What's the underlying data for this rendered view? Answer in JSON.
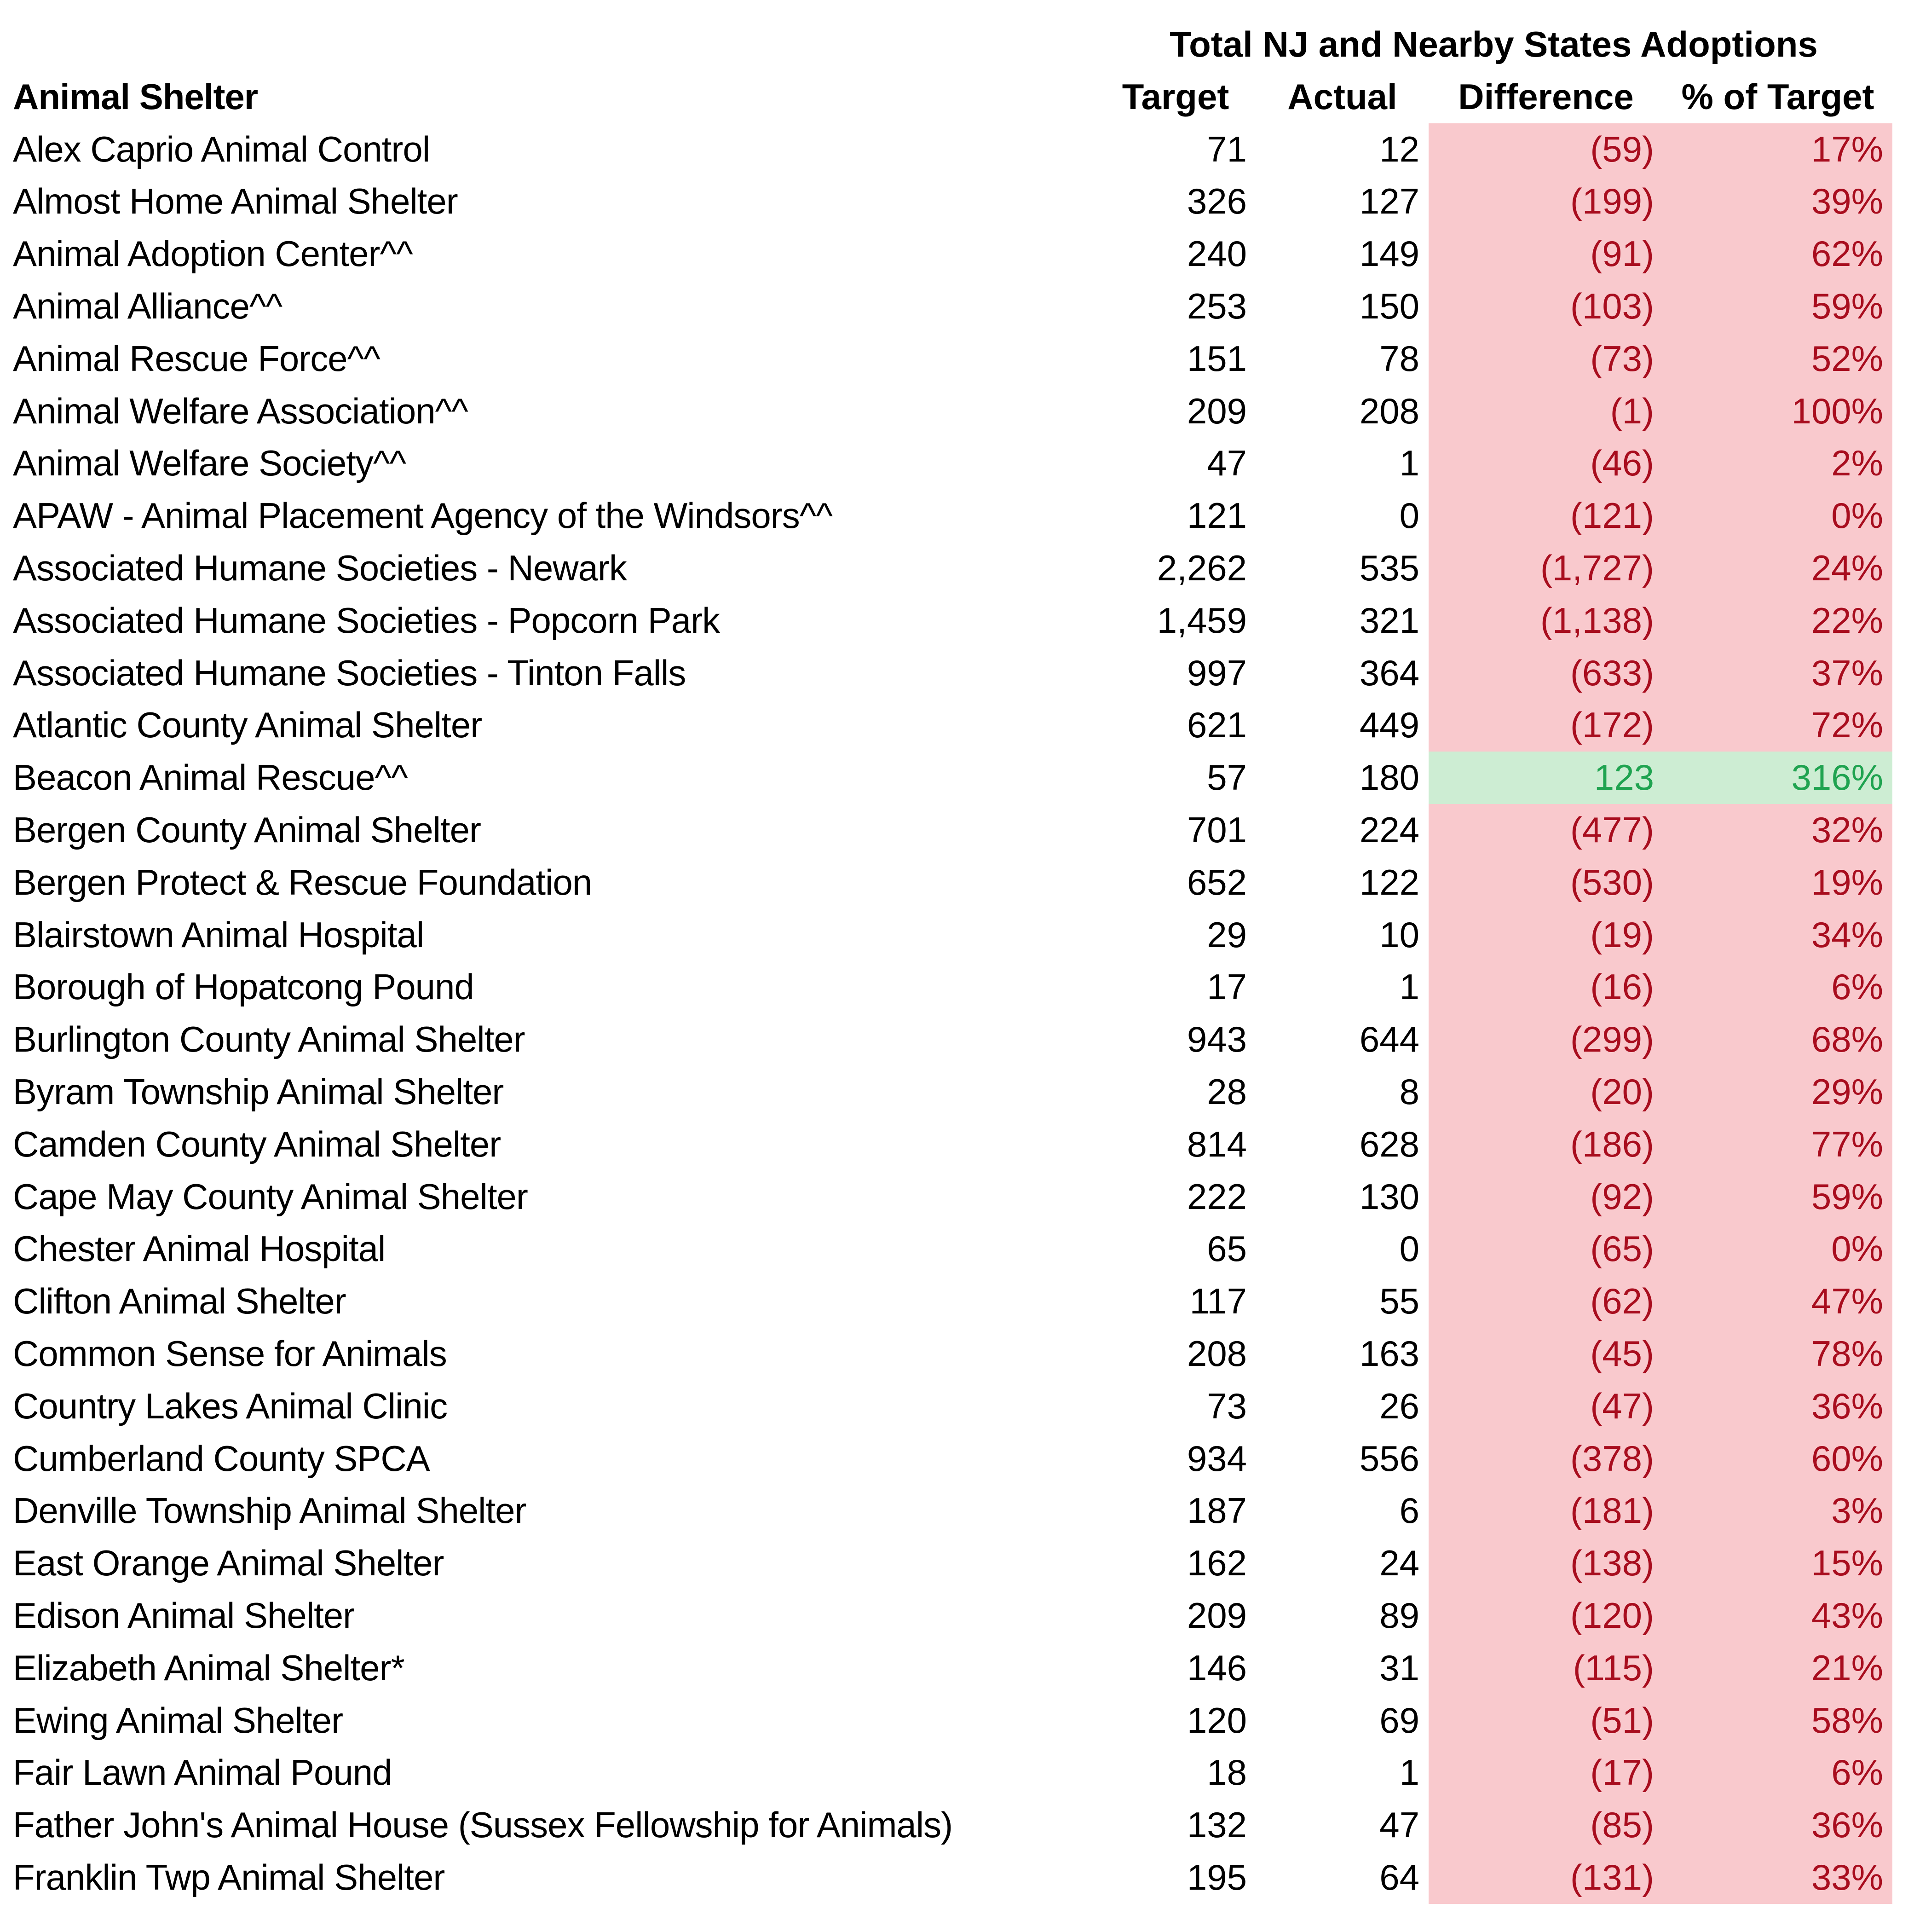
{
  "header": {
    "group_title": "Total NJ and Nearby States Adoptions",
    "name_col": "Animal Shelter",
    "columns": [
      "Target",
      "Actual",
      "Difference",
      "% of Target"
    ]
  },
  "colors": {
    "under_fill": "#F9C9CD",
    "under_text": "#A80D1E",
    "over_fill": "#CDEDD3",
    "over_text": "#1FA350",
    "text": "#000000",
    "background": "#FFFFFF"
  },
  "rows": [
    {
      "name": "Alex Caprio Animal Control",
      "target": "71",
      "actual": "12",
      "difference": "(59)",
      "pct_of_target": "17%",
      "status": "under"
    },
    {
      "name": "Almost Home Animal Shelter",
      "target": "326",
      "actual": "127",
      "difference": "(199)",
      "pct_of_target": "39%",
      "status": "under"
    },
    {
      "name": "Animal Adoption Center^^",
      "target": "240",
      "actual": "149",
      "difference": "(91)",
      "pct_of_target": "62%",
      "status": "under"
    },
    {
      "name": "Animal Alliance^^",
      "target": "253",
      "actual": "150",
      "difference": "(103)",
      "pct_of_target": "59%",
      "status": "under"
    },
    {
      "name": "Animal Rescue Force^^",
      "target": "151",
      "actual": "78",
      "difference": "(73)",
      "pct_of_target": "52%",
      "status": "under"
    },
    {
      "name": "Animal Welfare Association^^",
      "target": "209",
      "actual": "208",
      "difference": "(1)",
      "pct_of_target": "100%",
      "status": "under"
    },
    {
      "name": "Animal Welfare Society^^",
      "target": "47",
      "actual": "1",
      "difference": "(46)",
      "pct_of_target": "2%",
      "status": "under"
    },
    {
      "name": "APAW - Animal Placement Agency of the Windsors^^",
      "target": "121",
      "actual": "0",
      "difference": "(121)",
      "pct_of_target": "0%",
      "status": "under"
    },
    {
      "name": "Associated Humane Societies - Newark",
      "target": "2,262",
      "actual": "535",
      "difference": "(1,727)",
      "pct_of_target": "24%",
      "status": "under"
    },
    {
      "name": "Associated Humane Societies - Popcorn Park",
      "target": "1,459",
      "actual": "321",
      "difference": "(1,138)",
      "pct_of_target": "22%",
      "status": "under"
    },
    {
      "name": "Associated Humane Societies - Tinton Falls",
      "target": "997",
      "actual": "364",
      "difference": "(633)",
      "pct_of_target": "37%",
      "status": "under"
    },
    {
      "name": "Atlantic County Animal Shelter",
      "target": "621",
      "actual": "449",
      "difference": "(172)",
      "pct_of_target": "72%",
      "status": "under"
    },
    {
      "name": "Beacon Animal Rescue^^",
      "target": "57",
      "actual": "180",
      "difference": "123",
      "pct_of_target": "316%",
      "status": "over"
    },
    {
      "name": "Bergen County Animal Shelter",
      "target": "701",
      "actual": "224",
      "difference": "(477)",
      "pct_of_target": "32%",
      "status": "under"
    },
    {
      "name": "Bergen Protect & Rescue Foundation",
      "target": "652",
      "actual": "122",
      "difference": "(530)",
      "pct_of_target": "19%",
      "status": "under"
    },
    {
      "name": "Blairstown Animal Hospital",
      "target": "29",
      "actual": "10",
      "difference": "(19)",
      "pct_of_target": "34%",
      "status": "under"
    },
    {
      "name": "Borough of Hopatcong Pound",
      "target": "17",
      "actual": "1",
      "difference": "(16)",
      "pct_of_target": "6%",
      "status": "under"
    },
    {
      "name": "Burlington County Animal Shelter",
      "target": "943",
      "actual": "644",
      "difference": "(299)",
      "pct_of_target": "68%",
      "status": "under"
    },
    {
      "name": "Byram Township Animal Shelter",
      "target": "28",
      "actual": "8",
      "difference": "(20)",
      "pct_of_target": "29%",
      "status": "under"
    },
    {
      "name": "Camden County Animal Shelter",
      "target": "814",
      "actual": "628",
      "difference": "(186)",
      "pct_of_target": "77%",
      "status": "under"
    },
    {
      "name": "Cape May County Animal Shelter",
      "target": "222",
      "actual": "130",
      "difference": "(92)",
      "pct_of_target": "59%",
      "status": "under"
    },
    {
      "name": "Chester Animal Hospital",
      "target": "65",
      "actual": "0",
      "difference": "(65)",
      "pct_of_target": "0%",
      "status": "under"
    },
    {
      "name": "Clifton Animal Shelter",
      "target": "117",
      "actual": "55",
      "difference": "(62)",
      "pct_of_target": "47%",
      "status": "under"
    },
    {
      "name": "Common Sense for Animals",
      "target": "208",
      "actual": "163",
      "difference": "(45)",
      "pct_of_target": "78%",
      "status": "under"
    },
    {
      "name": "Country Lakes Animal Clinic",
      "target": "73",
      "actual": "26",
      "difference": "(47)",
      "pct_of_target": "36%",
      "status": "under"
    },
    {
      "name": "Cumberland County SPCA",
      "target": "934",
      "actual": "556",
      "difference": "(378)",
      "pct_of_target": "60%",
      "status": "under"
    },
    {
      "name": "Denville Township Animal Shelter",
      "target": "187",
      "actual": "6",
      "difference": "(181)",
      "pct_of_target": "3%",
      "status": "under"
    },
    {
      "name": "East Orange Animal Shelter",
      "target": "162",
      "actual": "24",
      "difference": "(138)",
      "pct_of_target": "15%",
      "status": "under"
    },
    {
      "name": "Edison Animal Shelter",
      "target": "209",
      "actual": "89",
      "difference": "(120)",
      "pct_of_target": "43%",
      "status": "under"
    },
    {
      "name": "Elizabeth Animal Shelter*",
      "target": "146",
      "actual": "31",
      "difference": "(115)",
      "pct_of_target": "21%",
      "status": "under"
    },
    {
      "name": "Ewing Animal Shelter",
      "target": "120",
      "actual": "69",
      "difference": "(51)",
      "pct_of_target": "58%",
      "status": "under"
    },
    {
      "name": "Fair Lawn Animal Pound",
      "target": "18",
      "actual": "1",
      "difference": "(17)",
      "pct_of_target": "6%",
      "status": "under"
    },
    {
      "name": "Father John's Animal House (Sussex Fellowship for Animals)",
      "target": "132",
      "actual": "47",
      "difference": "(85)",
      "pct_of_target": "36%",
      "status": "under"
    },
    {
      "name": "Franklin Twp Animal Shelter",
      "target": "195",
      "actual": "64",
      "difference": "(131)",
      "pct_of_target": "33%",
      "status": "under"
    }
  ]
}
